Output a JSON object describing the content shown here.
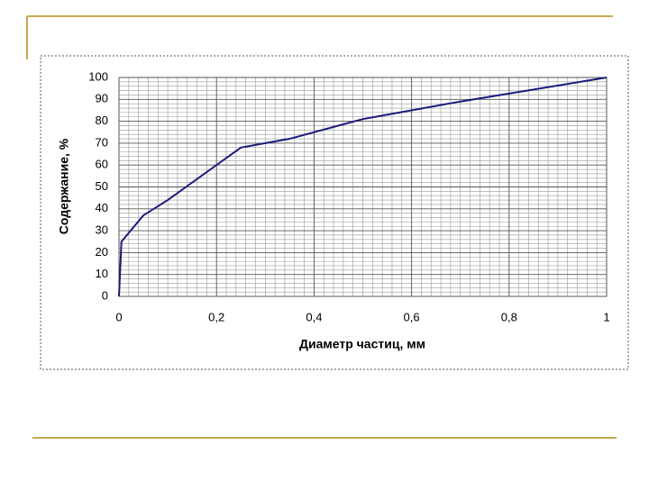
{
  "chart_data": {
    "type": "line",
    "x_label": "Диаметр частиц, мм",
    "y_label": "Содержание, %",
    "x": [
      0,
      0.002,
      0.005,
      0.05,
      0.1,
      0.25,
      0.35,
      0.5,
      0.7,
      1
    ],
    "series": [
      {
        "color": "#1a1a7a",
        "values": [
          0,
          10,
          25,
          37,
          44,
          68,
          72,
          81,
          89,
          100
        ]
      }
    ],
    "xlim": [
      0,
      1
    ],
    "xticks": [
      0,
      {
        "value": 0.2,
        "label": "0,2"
      },
      {
        "value": 0.4,
        "label": "0,4"
      },
      {
        "value": 0.6,
        "label": "0,6"
      },
      {
        "value": 0.8,
        "label": "0,8"
      },
      1
    ],
    "ylim": [
      0,
      100
    ],
    "yticks": [
      0,
      10,
      20,
      30,
      40,
      50,
      60,
      70,
      80,
      90,
      100
    ],
    "grid": true
  }
}
